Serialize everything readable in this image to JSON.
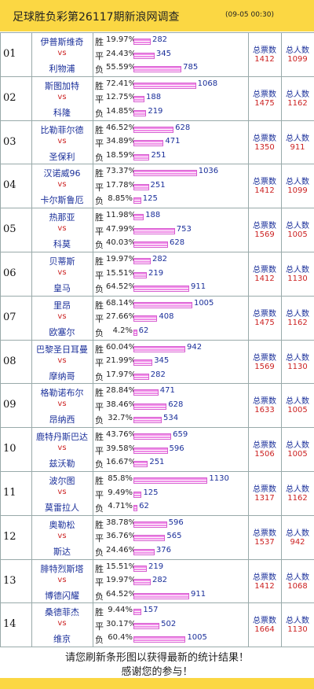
{
  "header": {
    "title": "足球胜负彩第26117期新浪网调查",
    "time": "(09-05 00:30)"
  },
  "labels": {
    "vs": "vs",
    "outcomes": [
      "胜",
      "平",
      "负"
    ],
    "total_votes": "总票数",
    "total_people": "总人数"
  },
  "rows": [
    {
      "no": "01",
      "home": "伊普斯维奇",
      "away": "利物浦",
      "percents": [
        19.97,
        24.43,
        55.59
      ],
      "percent_labels": [
        "19.97%",
        "24.43%",
        "55.59%"
      ],
      "counts": [
        282,
        345,
        785
      ],
      "total_votes": 1412,
      "total_people": 1099
    },
    {
      "no": "02",
      "home": "斯图加特",
      "away": "科隆",
      "percents": [
        72.41,
        12.75,
        14.85
      ],
      "percent_labels": [
        "72.41%",
        "12.75%",
        "14.85%"
      ],
      "counts": [
        1068,
        188,
        219
      ],
      "total_votes": 1475,
      "total_people": 1162
    },
    {
      "no": "03",
      "home": "比勒菲尔德",
      "away": "圣保利",
      "percents": [
        46.52,
        34.89,
        18.59
      ],
      "percent_labels": [
        "46.52%",
        "34.89%",
        "18.59%"
      ],
      "counts": [
        628,
        471,
        251
      ],
      "total_votes": 1350,
      "total_people": 911
    },
    {
      "no": "04",
      "home": "汉诺威96",
      "away": "卡尔斯鲁厄",
      "percents": [
        73.37,
        17.78,
        8.85
      ],
      "percent_labels": [
        "73.37%",
        "17.78%",
        "8.85%"
      ],
      "counts": [
        1036,
        251,
        125
      ],
      "total_votes": 1412,
      "total_people": 1099
    },
    {
      "no": "05",
      "home": "热那亚",
      "away": "科莫",
      "percents": [
        11.98,
        47.99,
        40.03
      ],
      "percent_labels": [
        "11.98%",
        "47.99%",
        "40.03%"
      ],
      "counts": [
        188,
        753,
        628
      ],
      "total_votes": 1569,
      "total_people": 1005
    },
    {
      "no": "06",
      "home": "贝蒂斯",
      "away": "皇马",
      "percents": [
        19.97,
        15.51,
        64.52
      ],
      "percent_labels": [
        "19.97%",
        "15.51%",
        "64.52%"
      ],
      "counts": [
        282,
        219,
        911
      ],
      "total_votes": 1412,
      "total_people": 1130
    },
    {
      "no": "07",
      "home": "里昂",
      "away": "欧塞尔",
      "percents": [
        68.14,
        27.66,
        4.2
      ],
      "percent_labels": [
        "68.14%",
        "27.66%",
        "4.2%"
      ],
      "counts": [
        1005,
        408,
        62
      ],
      "total_votes": 1475,
      "total_people": 1162
    },
    {
      "no": "08",
      "home": "巴黎圣日耳曼",
      "away": "摩纳哥",
      "percents": [
        60.04,
        21.99,
        17.97
      ],
      "percent_labels": [
        "60.04%",
        "21.99%",
        "17.97%"
      ],
      "counts": [
        942,
        345,
        282
      ],
      "total_votes": 1569,
      "total_people": 1130
    },
    {
      "no": "09",
      "home": "格勒诺布尔",
      "away": "昂纳西",
      "percents": [
        28.84,
        38.46,
        32.7
      ],
      "percent_labels": [
        "28.84%",
        "38.46%",
        "32.7%"
      ],
      "counts": [
        471,
        628,
        534
      ],
      "total_votes": 1633,
      "total_people": 1005
    },
    {
      "no": "10",
      "home": "鹿特丹斯巴达",
      "away": "兹沃勒",
      "percents": [
        43.76,
        39.58,
        16.67
      ],
      "percent_labels": [
        "43.76%",
        "39.58%",
        "16.67%"
      ],
      "counts": [
        659,
        596,
        251
      ],
      "total_votes": 1506,
      "total_people": 1005
    },
    {
      "no": "11",
      "home": "波尔图",
      "away": "莫雷拉人",
      "percents": [
        85.8,
        9.49,
        4.71
      ],
      "percent_labels": [
        "85.8%",
        "9.49%",
        "4.71%"
      ],
      "counts": [
        1130,
        125,
        62
      ],
      "total_votes": 1317,
      "total_people": 1162
    },
    {
      "no": "12",
      "home": "奥勒松",
      "away": "斯达",
      "percents": [
        38.78,
        36.76,
        24.46
      ],
      "percent_labels": [
        "38.78%",
        "36.76%",
        "24.46%"
      ],
      "counts": [
        596,
        565,
        376
      ],
      "total_votes": 1537,
      "total_people": 942
    },
    {
      "no": "13",
      "home": "腓特烈斯塔",
      "away": "博德闪耀",
      "percents": [
        15.51,
        19.97,
        64.52
      ],
      "percent_labels": [
        "15.51%",
        "19.97%",
        "64.52%"
      ],
      "counts": [
        219,
        282,
        911
      ],
      "total_votes": 1412,
      "total_people": 1068
    },
    {
      "no": "14",
      "home": "桑德菲杰",
      "away": "维京",
      "percents": [
        9.44,
        30.17,
        60.4
      ],
      "percent_labels": [
        "9.44%",
        "30.17%",
        "60.4%"
      ],
      "counts": [
        157,
        502,
        1005
      ],
      "total_votes": 1664,
      "total_people": 1130
    }
  ],
  "footer": [
    "请您刷新条形图以获得最新的统计结果！",
    "感谢您的参与！"
  ]
}
